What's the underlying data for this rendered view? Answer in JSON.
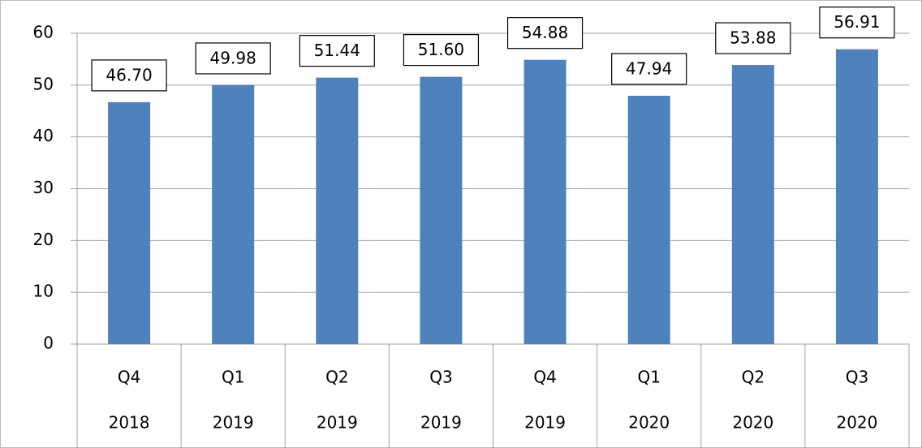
{
  "chart_data": {
    "type": "bar",
    "categories": [
      [
        "Q4",
        "2018"
      ],
      [
        "Q1",
        "2019"
      ],
      [
        "Q2",
        "2019"
      ],
      [
        "Q3",
        "2019"
      ],
      [
        "Q4",
        "2019"
      ],
      [
        "Q1",
        "2020"
      ],
      [
        "Q2",
        "2020"
      ],
      [
        "Q3",
        "2020"
      ]
    ],
    "values": [
      46.7,
      49.98,
      51.44,
      51.6,
      54.88,
      47.94,
      53.88,
      56.91
    ],
    "value_labels": [
      "46.70",
      "49.98",
      "51.44",
      "51.60",
      "54.88",
      "47.94",
      "53.88",
      "56.91"
    ],
    "color": "#4f81bd",
    "ylim": [
      0,
      60
    ],
    "yticks": [
      0,
      10,
      20,
      30,
      40,
      50,
      60
    ],
    "grid": true
  }
}
